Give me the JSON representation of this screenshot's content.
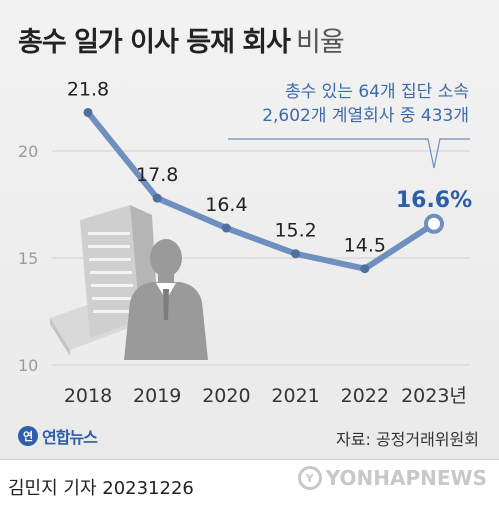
{
  "header": {
    "title": "총수 일가 이사 등재 회사",
    "title_suffix": "비율"
  },
  "note": {
    "line1": "총수 있는 64개 집단 소속",
    "line2": "2,602개 계열회사 중 433개"
  },
  "chart_data": {
    "type": "line",
    "categories": [
      "2018",
      "2019",
      "2020",
      "2021",
      "2022",
      "2023년"
    ],
    "values": [
      21.8,
      17.8,
      16.4,
      15.2,
      14.5,
      16.6
    ],
    "value_labels": [
      "21.8",
      "17.8",
      "16.4",
      "15.2",
      "14.5",
      "16.6%"
    ],
    "y_ticks": [
      "10",
      "15",
      "20"
    ],
    "ylim": [
      10,
      22.5
    ],
    "highlight_index": 5,
    "grid": true,
    "colors": {
      "line": "#6f8fbe",
      "highlight_label": "#2d5ea8",
      "label": "#222222"
    }
  },
  "footer": {
    "logo_mark": "연",
    "logo": "연합뉴스",
    "source": "자료: 공정거래위원회",
    "reporter": "김민지 기자  20231226",
    "watermark": "YONHAPNEWS",
    "watermark_mark": "Y"
  }
}
